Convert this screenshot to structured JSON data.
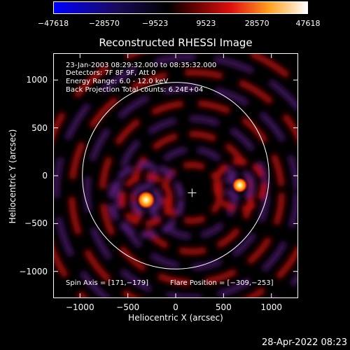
{
  "chart_data": {
    "type": "heatmap",
    "title": "Reconstructed RHESSI Image",
    "xlabel": "Heliocentric X (arcsec)",
    "ylabel": "Heliocentric Y (arcsec)",
    "xlim": [
      -1280,
      1280
    ],
    "ylim": [
      -1280,
      1280
    ],
    "x_ticks": [
      -1000,
      -500,
      0,
      500,
      1000
    ],
    "x_tick_labels": [
      "−1000",
      "−500",
      "0",
      "500",
      "1000"
    ],
    "y_ticks": [
      -1000,
      -500,
      0,
      500,
      1000
    ],
    "y_tick_labels": [
      "−1000",
      "−500",
      "0",
      "500",
      "1000"
    ],
    "colorbar": {
      "ticks": [
        -47618,
        -28570,
        -9523,
        9523,
        28570,
        47618
      ],
      "tick_labels": [
        "−47618",
        "−28570",
        "−9523",
        "9523",
        "28570",
        "47618"
      ],
      "range": [
        -47618,
        47618
      ]
    },
    "annotations": [
      "23-Jan-2003 08:29:32.000 to 08:35:32.000",
      "Detectors: 7F 8F 9F, Att 0",
      "Energy Range: 6.0 - 12.0 keV",
      "Back Projection     Total counts: 6.24E+04"
    ],
    "spin_axis_text": "Spin Axis = [171,−179]",
    "flare_position_text": "Flare Position = [−309,−253]",
    "spin_axis": [
      171,
      -179
    ],
    "flare_position": [
      -309,
      -253
    ],
    "secondary_source": [
      670,
      -100
    ],
    "solar_disk_radius": 975,
    "grid": false
  },
  "timestamp": "28-Apr-2022 08:23",
  "colors": {
    "background": "#000000",
    "frame": "#ffffff"
  }
}
